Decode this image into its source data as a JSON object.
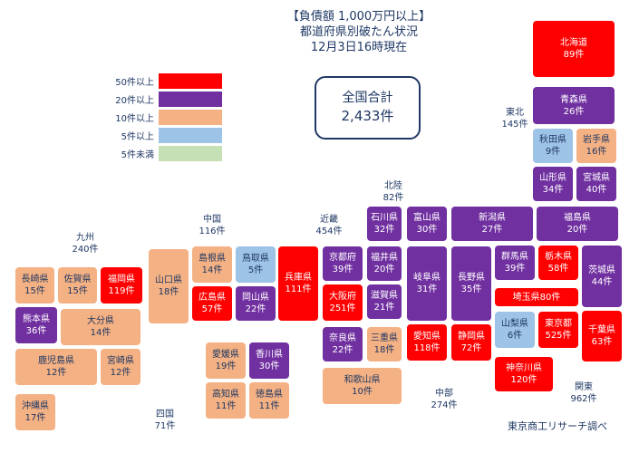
{
  "title": {
    "line1": "【負債額 1,000万円以上】",
    "line2": "都道府県別破たん状況",
    "line3": "12月3日16時現在"
  },
  "legend": [
    {
      "label": "50件以上",
      "color": "#ff0000"
    },
    {
      "label": "20件以上",
      "color": "#7030a0"
    },
    {
      "label": "10件以上",
      "color": "#f4b183"
    },
    {
      "label": "5件以上",
      "color": "#9dc3e6"
    },
    {
      "label": "5件未満",
      "color": "#c5e0b4"
    }
  ],
  "total": {
    "label": "全国合計",
    "count": "2,433件"
  },
  "regions": {
    "hokkaido_tohoku": {
      "name": "東北",
      "count": "145件"
    },
    "hokuriku": {
      "name": "北陸",
      "count": "82件"
    },
    "kinki": {
      "name": "近畿",
      "count": "454件"
    },
    "chugoku": {
      "name": "中国",
      "count": "116件"
    },
    "kyushu": {
      "name": "九州",
      "count": "240件"
    },
    "shikoku": {
      "name": "四国",
      "count": "71件"
    },
    "chubu": {
      "name": "中部",
      "count": "274件"
    },
    "kanto": {
      "name": "関東",
      "count": "962件"
    }
  },
  "prefs": {
    "hokkaido": {
      "name": "北海道",
      "count": "89件",
      "tier": "red"
    },
    "aomori": {
      "name": "青森県",
      "count": "26件",
      "tier": "purple"
    },
    "akita": {
      "name": "秋田県",
      "count": "9件",
      "tier": "blue"
    },
    "iwate": {
      "name": "岩手県",
      "count": "16件",
      "tier": "orange"
    },
    "yamagata": {
      "name": "山形県",
      "count": "34件",
      "tier": "purple"
    },
    "miyagi": {
      "name": "宮城県",
      "count": "40件",
      "tier": "purple"
    },
    "fukushima": {
      "name": "福島県",
      "count": "20件",
      "tier": "purple"
    },
    "niigata": {
      "name": "新潟県",
      "count": "27件",
      "tier": "purple"
    },
    "ishikawa": {
      "name": "石川県",
      "count": "32件",
      "tier": "purple"
    },
    "toyama": {
      "name": "富山県",
      "count": "30件",
      "tier": "purple"
    },
    "fukui": {
      "name": "福井県",
      "count": "20件",
      "tier": "purple"
    },
    "gifu": {
      "name": "岐阜県",
      "count": "31件",
      "tier": "purple"
    },
    "nagano": {
      "name": "長野県",
      "count": "35件",
      "tier": "purple"
    },
    "gunma": {
      "name": "群馬県",
      "count": "39件",
      "tier": "purple"
    },
    "tochigi": {
      "name": "栃木県",
      "count": "58件",
      "tier": "red"
    },
    "ibaraki": {
      "name": "茨城県",
      "count": "44件",
      "tier": "purple"
    },
    "saitama": {
      "name": "埼玉県",
      "count": "80件",
      "tier": "red"
    },
    "yamanashi": {
      "name": "山梨県",
      "count": "6件",
      "tier": "blue"
    },
    "tokyo": {
      "name": "東京都",
      "count": "525件",
      "tier": "red"
    },
    "chiba": {
      "name": "千葉県",
      "count": "63件",
      "tier": "red"
    },
    "kanagawa": {
      "name": "神奈川県",
      "count": "120件",
      "tier": "red"
    },
    "aichi": {
      "name": "愛知県",
      "count": "118件",
      "tier": "red"
    },
    "shizuoka": {
      "name": "静岡県",
      "count": "72件",
      "tier": "red"
    },
    "shiga": {
      "name": "滋賀県",
      "count": "21件",
      "tier": "purple"
    },
    "mie": {
      "name": "三重県",
      "count": "18件",
      "tier": "orange"
    },
    "kyoto": {
      "name": "京都府",
      "count": "39件",
      "tier": "purple"
    },
    "osaka": {
      "name": "大阪府",
      "count": "251件",
      "tier": "red"
    },
    "nara": {
      "name": "奈良県",
      "count": "22件",
      "tier": "purple"
    },
    "wakayama": {
      "name": "和歌山県",
      "count": "10件",
      "tier": "orange"
    },
    "hyogo": {
      "name": "兵庫県",
      "count": "111件",
      "tier": "red"
    },
    "tottori": {
      "name": "鳥取県",
      "count": "5件",
      "tier": "blue"
    },
    "shimane": {
      "name": "島根県",
      "count": "14件",
      "tier": "orange"
    },
    "okayama": {
      "name": "岡山県",
      "count": "22件",
      "tier": "purple"
    },
    "hiroshima": {
      "name": "広島県",
      "count": "57件",
      "tier": "red"
    },
    "yamaguchi": {
      "name": "山口県",
      "count": "18件",
      "tier": "orange"
    },
    "ehime": {
      "name": "愛媛県",
      "count": "19件",
      "tier": "orange"
    },
    "kagawa": {
      "name": "香川県",
      "count": "30件",
      "tier": "purple"
    },
    "kochi": {
      "name": "高知県",
      "count": "11件",
      "tier": "orange"
    },
    "tokushima": {
      "name": "徳島県",
      "count": "11件",
      "tier": "orange"
    },
    "fukuoka": {
      "name": "福岡県",
      "count": "119件",
      "tier": "red"
    },
    "saga": {
      "name": "佐賀県",
      "count": "15件",
      "tier": "orange"
    },
    "nagasaki": {
      "name": "長崎県",
      "count": "15件",
      "tier": "orange"
    },
    "kumamoto": {
      "name": "熊本県",
      "count": "36件",
      "tier": "purple"
    },
    "oita": {
      "name": "大分県",
      "count": "14件",
      "tier": "orange"
    },
    "kagoshima": {
      "name": "鹿児島県",
      "count": "12件",
      "tier": "orange"
    },
    "miyazaki": {
      "name": "宮崎県",
      "count": "12件",
      "tier": "orange"
    },
    "okinawa": {
      "name": "沖縄県",
      "count": "17件",
      "tier": "orange"
    }
  },
  "credit": "東京商工リサーチ調べ"
}
